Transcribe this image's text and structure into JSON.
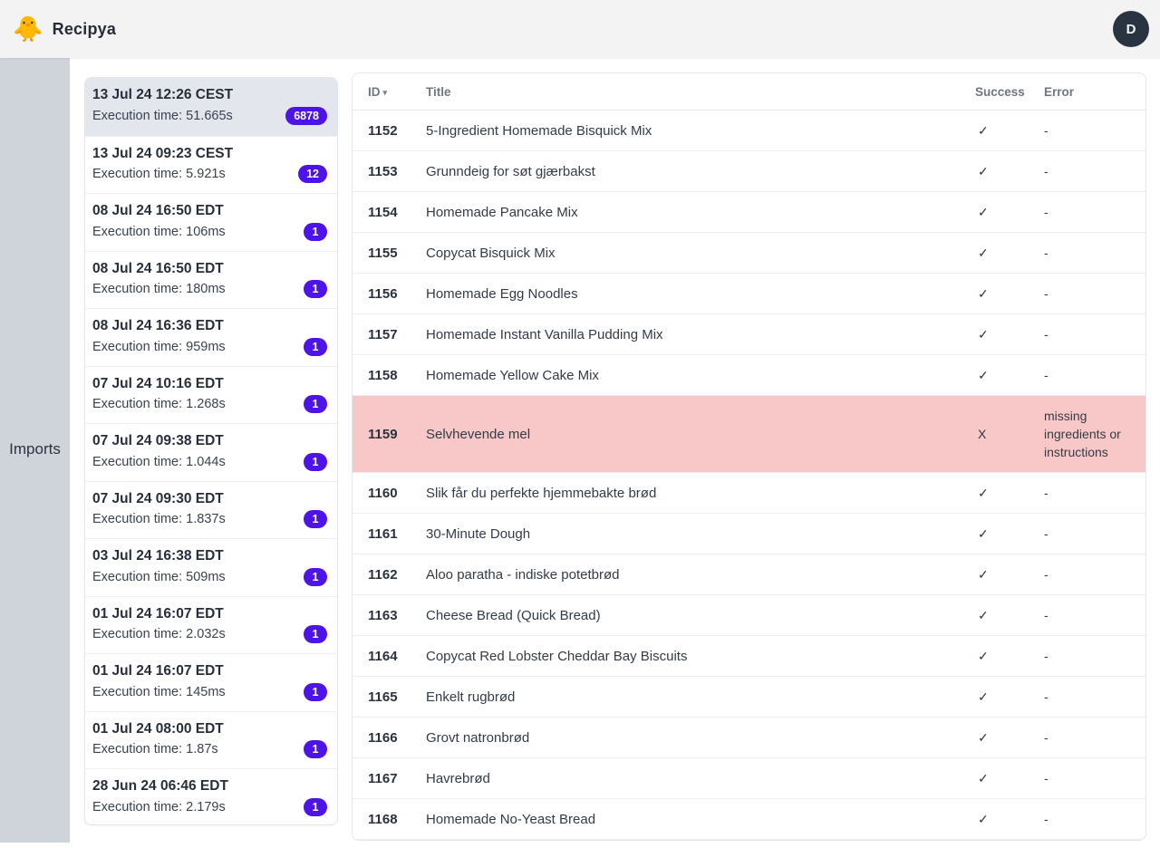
{
  "app": {
    "title": "Recipya",
    "logo_icon": "🐥",
    "avatar_letter": "D"
  },
  "sidebar": {
    "label": "Imports"
  },
  "imports": {
    "items": [
      {
        "date": "13 Jul 24 12:26 CEST",
        "execution": "Execution time: 51.665s",
        "count": "6878",
        "selected": true
      },
      {
        "date": "13 Jul 24 09:23 CEST",
        "execution": "Execution time: 5.921s",
        "count": "12",
        "selected": false
      },
      {
        "date": "08 Jul 24 16:50 EDT",
        "execution": "Execution time: 106ms",
        "count": "1",
        "selected": false
      },
      {
        "date": "08 Jul 24 16:50 EDT",
        "execution": "Execution time: 180ms",
        "count": "1",
        "selected": false
      },
      {
        "date": "08 Jul 24 16:36 EDT",
        "execution": "Execution time: 959ms",
        "count": "1",
        "selected": false
      },
      {
        "date": "07 Jul 24 10:16 EDT",
        "execution": "Execution time: 1.268s",
        "count": "1",
        "selected": false
      },
      {
        "date": "07 Jul 24 09:38 EDT",
        "execution": "Execution time: 1.044s",
        "count": "1",
        "selected": false
      },
      {
        "date": "07 Jul 24 09:30 EDT",
        "execution": "Execution time: 1.837s",
        "count": "1",
        "selected": false
      },
      {
        "date": "03 Jul 24 16:38 EDT",
        "execution": "Execution time: 509ms",
        "count": "1",
        "selected": false
      },
      {
        "date": "01 Jul 24 16:07 EDT",
        "execution": "Execution time: 2.032s",
        "count": "1",
        "selected": false
      },
      {
        "date": "01 Jul 24 16:07 EDT",
        "execution": "Execution time: 145ms",
        "count": "1",
        "selected": false
      },
      {
        "date": "01 Jul 24 08:00 EDT",
        "execution": "Execution time: 1.87s",
        "count": "1",
        "selected": false
      },
      {
        "date": "28 Jun 24 06:46 EDT",
        "execution": "Execution time: 2.179s",
        "count": "1",
        "selected": false
      }
    ]
  },
  "table": {
    "columns": {
      "id": "ID",
      "title": "Title",
      "success": "Success",
      "error": "Error"
    },
    "sort_icon": "▾",
    "rows": [
      {
        "id": "1152",
        "title": "5-Ingredient Homemade Bisquick Mix",
        "success": "✓",
        "error": "-",
        "failed": false
      },
      {
        "id": "1153",
        "title": "Grunndeig for søt gjærbakst",
        "success": "✓",
        "error": "-",
        "failed": false
      },
      {
        "id": "1154",
        "title": "Homemade Pancake Mix",
        "success": "✓",
        "error": "-",
        "failed": false
      },
      {
        "id": "1155",
        "title": "Copycat Bisquick Mix",
        "success": "✓",
        "error": "-",
        "failed": false
      },
      {
        "id": "1156",
        "title": "Homemade Egg Noodles",
        "success": "✓",
        "error": "-",
        "failed": false
      },
      {
        "id": "1157",
        "title": "Homemade Instant Vanilla Pudding Mix",
        "success": "✓",
        "error": "-",
        "failed": false
      },
      {
        "id": "1158",
        "title": "Homemade Yellow Cake Mix",
        "success": "✓",
        "error": "-",
        "failed": false
      },
      {
        "id": "1159",
        "title": "Selvhevende mel",
        "success": "X",
        "error": "missing ingredients or instructions",
        "failed": true
      },
      {
        "id": "1160",
        "title": "Slik får du perfekte hjemmebakte brød",
        "success": "✓",
        "error": "-",
        "failed": false
      },
      {
        "id": "1161",
        "title": "30-Minute Dough",
        "success": "✓",
        "error": "-",
        "failed": false
      },
      {
        "id": "1162",
        "title": "Aloo paratha - indiske potetbrød",
        "success": "✓",
        "error": "-",
        "failed": false
      },
      {
        "id": "1163",
        "title": "Cheese Bread (Quick Bread)",
        "success": "✓",
        "error": "-",
        "failed": false
      },
      {
        "id": "1164",
        "title": "Copycat Red Lobster Cheddar Bay Biscuits",
        "success": "✓",
        "error": "-",
        "failed": false
      },
      {
        "id": "1165",
        "title": "Enkelt rugbrød",
        "success": "✓",
        "error": "-",
        "failed": false
      },
      {
        "id": "1166",
        "title": "Grovt natronbrød",
        "success": "✓",
        "error": "-",
        "failed": false
      },
      {
        "id": "1167",
        "title": "Havrebrød",
        "success": "✓",
        "error": "-",
        "failed": false
      },
      {
        "id": "1168",
        "title": "Homemade No-Yeast Bread",
        "success": "✓",
        "error": "-",
        "failed": false
      }
    ]
  },
  "colors": {
    "badge_purple": "#4d13e8",
    "error_row_pink": "#f8c8c8",
    "avatar_navy": "#2a3342",
    "rail_gray": "#cfd3da",
    "header_gray": "#f3f3f4",
    "selected_item": "#e4e6ed"
  }
}
